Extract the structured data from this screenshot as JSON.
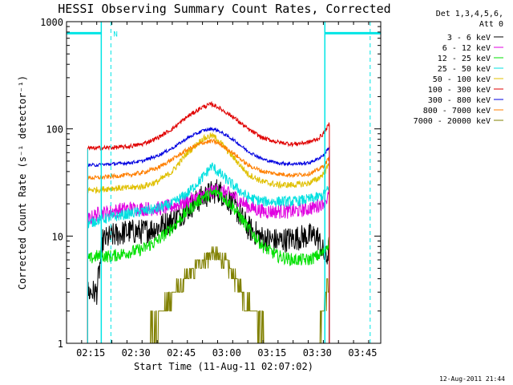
{
  "title": "HESSI Observing Summary Count Rates, Corrected",
  "legend_header": [
    "Det 1,3,4,5,6,",
    "Att 0"
  ],
  "footer_stamp": "12-Aug-2011 21:44",
  "colors": {
    "axes": "#000000",
    "night_marker": "#00e5e5",
    "background": "#ffffff"
  },
  "chart_data": {
    "type": "line",
    "title": "HESSI Observing Summary Count Rates, Corrected",
    "xlabel": "Start Time (11-Aug-11 02:07:02)",
    "ylabel": "Corrected Count Rate (s⁻¹ detector⁻¹)",
    "yscale": "log",
    "xlim_minutes": [
      0,
      104
    ],
    "ylim": [
      1,
      1000
    ],
    "xticks": [
      {
        "min": 8,
        "label": "02:15"
      },
      {
        "min": 23,
        "label": "02:30"
      },
      {
        "min": 38,
        "label": "02:45"
      },
      {
        "min": 53,
        "label": "03:00"
      },
      {
        "min": 68,
        "label": "03:15"
      },
      {
        "min": 83,
        "label": "03:30"
      },
      {
        "min": 98,
        "label": "03:45"
      }
    ],
    "yticks": [
      {
        "value": 1,
        "label": "1"
      },
      {
        "value": 10,
        "label": "10"
      },
      {
        "value": 100,
        "label": "100"
      },
      {
        "value": 1000,
        "label": "1000"
      }
    ],
    "night_intervals": [
      {
        "start_min": 0,
        "end_min": 11.5
      },
      {
        "start_min": 85.5,
        "end_min": 104
      }
    ],
    "saa_marker_label": "N",
    "dashed_markers_min": [
      11.5,
      85.5,
      100.5
    ],
    "data_start_min": 7,
    "data_end_min": 87,
    "series": [
      {
        "name": "3 - 6 keV",
        "color": "#000000",
        "x": [
          7,
          10,
          12,
          15,
          20,
          25,
          30,
          35,
          40,
          45,
          50,
          55,
          60,
          65,
          70,
          75,
          80,
          83,
          85,
          86,
          87
        ],
        "y": [
          3,
          3,
          9,
          10,
          11,
          11,
          12,
          14,
          18,
          23,
          27,
          20,
          12,
          9.5,
          9,
          9.5,
          10,
          10,
          7,
          6,
          8
        ]
      },
      {
        "name": "6 - 12 keV",
        "color": "#e000e0",
        "x": [
          7,
          10,
          15,
          20,
          25,
          30,
          35,
          40,
          45,
          50,
          55,
          60,
          65,
          70,
          75,
          80,
          83,
          85,
          86,
          87
        ],
        "y": [
          14,
          16,
          17,
          18,
          18,
          18,
          19,
          21,
          24,
          27,
          24,
          19,
          17,
          17,
          17,
          18,
          19,
          21,
          22,
          24
        ]
      },
      {
        "name": "12 - 25 keV",
        "color": "#00e000",
        "x": [
          7,
          10,
          15,
          20,
          25,
          30,
          35,
          40,
          45,
          50,
          55,
          60,
          65,
          70,
          75,
          80,
          83,
          85,
          86,
          87
        ],
        "y": [
          6,
          6.5,
          6.5,
          7,
          7.5,
          9,
          12,
          17,
          23,
          26,
          19,
          12,
          8,
          6.5,
          6,
          6,
          6.5,
          7,
          8,
          9
        ]
      },
      {
        "name": "25 - 50 keV",
        "color": "#00e0e0",
        "x": [
          7,
          10,
          15,
          20,
          25,
          30,
          35,
          40,
          45,
          48,
          50,
          55,
          60,
          65,
          70,
          75,
          80,
          83,
          85,
          86,
          87
        ],
        "y": [
          13,
          14,
          15,
          16,
          17,
          18,
          20,
          25,
          35,
          45,
          40,
          30,
          23,
          21,
          21,
          21,
          22,
          23,
          24,
          26,
          28
        ]
      },
      {
        "name": "50 - 100 keV",
        "color": "#e0c000",
        "x": [
          7,
          10,
          15,
          20,
          25,
          30,
          35,
          40,
          45,
          48,
          50,
          55,
          60,
          65,
          70,
          75,
          80,
          83,
          85,
          86,
          87
        ],
        "y": [
          27,
          27,
          28,
          28,
          29,
          32,
          40,
          60,
          80,
          87,
          80,
          55,
          38,
          32,
          30,
          30,
          31,
          34,
          38,
          42,
          48
        ]
      },
      {
        "name": "100 - 300 keV",
        "color": "#e00000",
        "x": [
          7,
          10,
          15,
          20,
          25,
          30,
          35,
          40,
          45,
          48,
          50,
          55,
          60,
          65,
          70,
          75,
          80,
          83,
          85,
          86,
          87
        ],
        "y": [
          66,
          66,
          67,
          68,
          72,
          82,
          100,
          130,
          160,
          170,
          160,
          130,
          100,
          82,
          75,
          72,
          75,
          80,
          90,
          100,
          112
        ]
      },
      {
        "name": "300 - 800 keV",
        "color": "#0000e0",
        "x": [
          7,
          10,
          15,
          20,
          25,
          30,
          35,
          40,
          45,
          48,
          50,
          55,
          60,
          65,
          70,
          75,
          80,
          83,
          85,
          86,
          87
        ],
        "y": [
          46,
          46,
          47,
          48,
          50,
          56,
          66,
          82,
          96,
          100,
          97,
          80,
          62,
          52,
          48,
          47,
          48,
          52,
          57,
          62,
          68
        ]
      },
      {
        "name": "800 - 7000 keV",
        "color": "#ff7f00",
        "x": [
          7,
          10,
          15,
          20,
          25,
          30,
          35,
          40,
          45,
          48,
          50,
          55,
          60,
          65,
          70,
          75,
          80,
          83,
          85,
          86,
          87
        ],
        "y": [
          35,
          35,
          36,
          37,
          39,
          43,
          52,
          64,
          74,
          77,
          74,
          60,
          46,
          40,
          38,
          37,
          38,
          41,
          45,
          49,
          54
        ]
      },
      {
        "name": "7000 - 20000 keV",
        "color": "#808000",
        "x": [
          7,
          10,
          15,
          20,
          25,
          28,
          32,
          35,
          38,
          42,
          45,
          48,
          50,
          53,
          55,
          58,
          62,
          65,
          70,
          75,
          80,
          83,
          85,
          86,
          87
        ],
        "y": [
          1,
          1,
          1,
          1,
          1,
          1.4,
          2,
          2.7,
          3.5,
          4.7,
          6,
          6.8,
          6.5,
          5.5,
          4.3,
          3,
          2,
          1.4,
          1,
          1,
          1,
          1,
          2,
          3,
          4
        ]
      }
    ]
  }
}
